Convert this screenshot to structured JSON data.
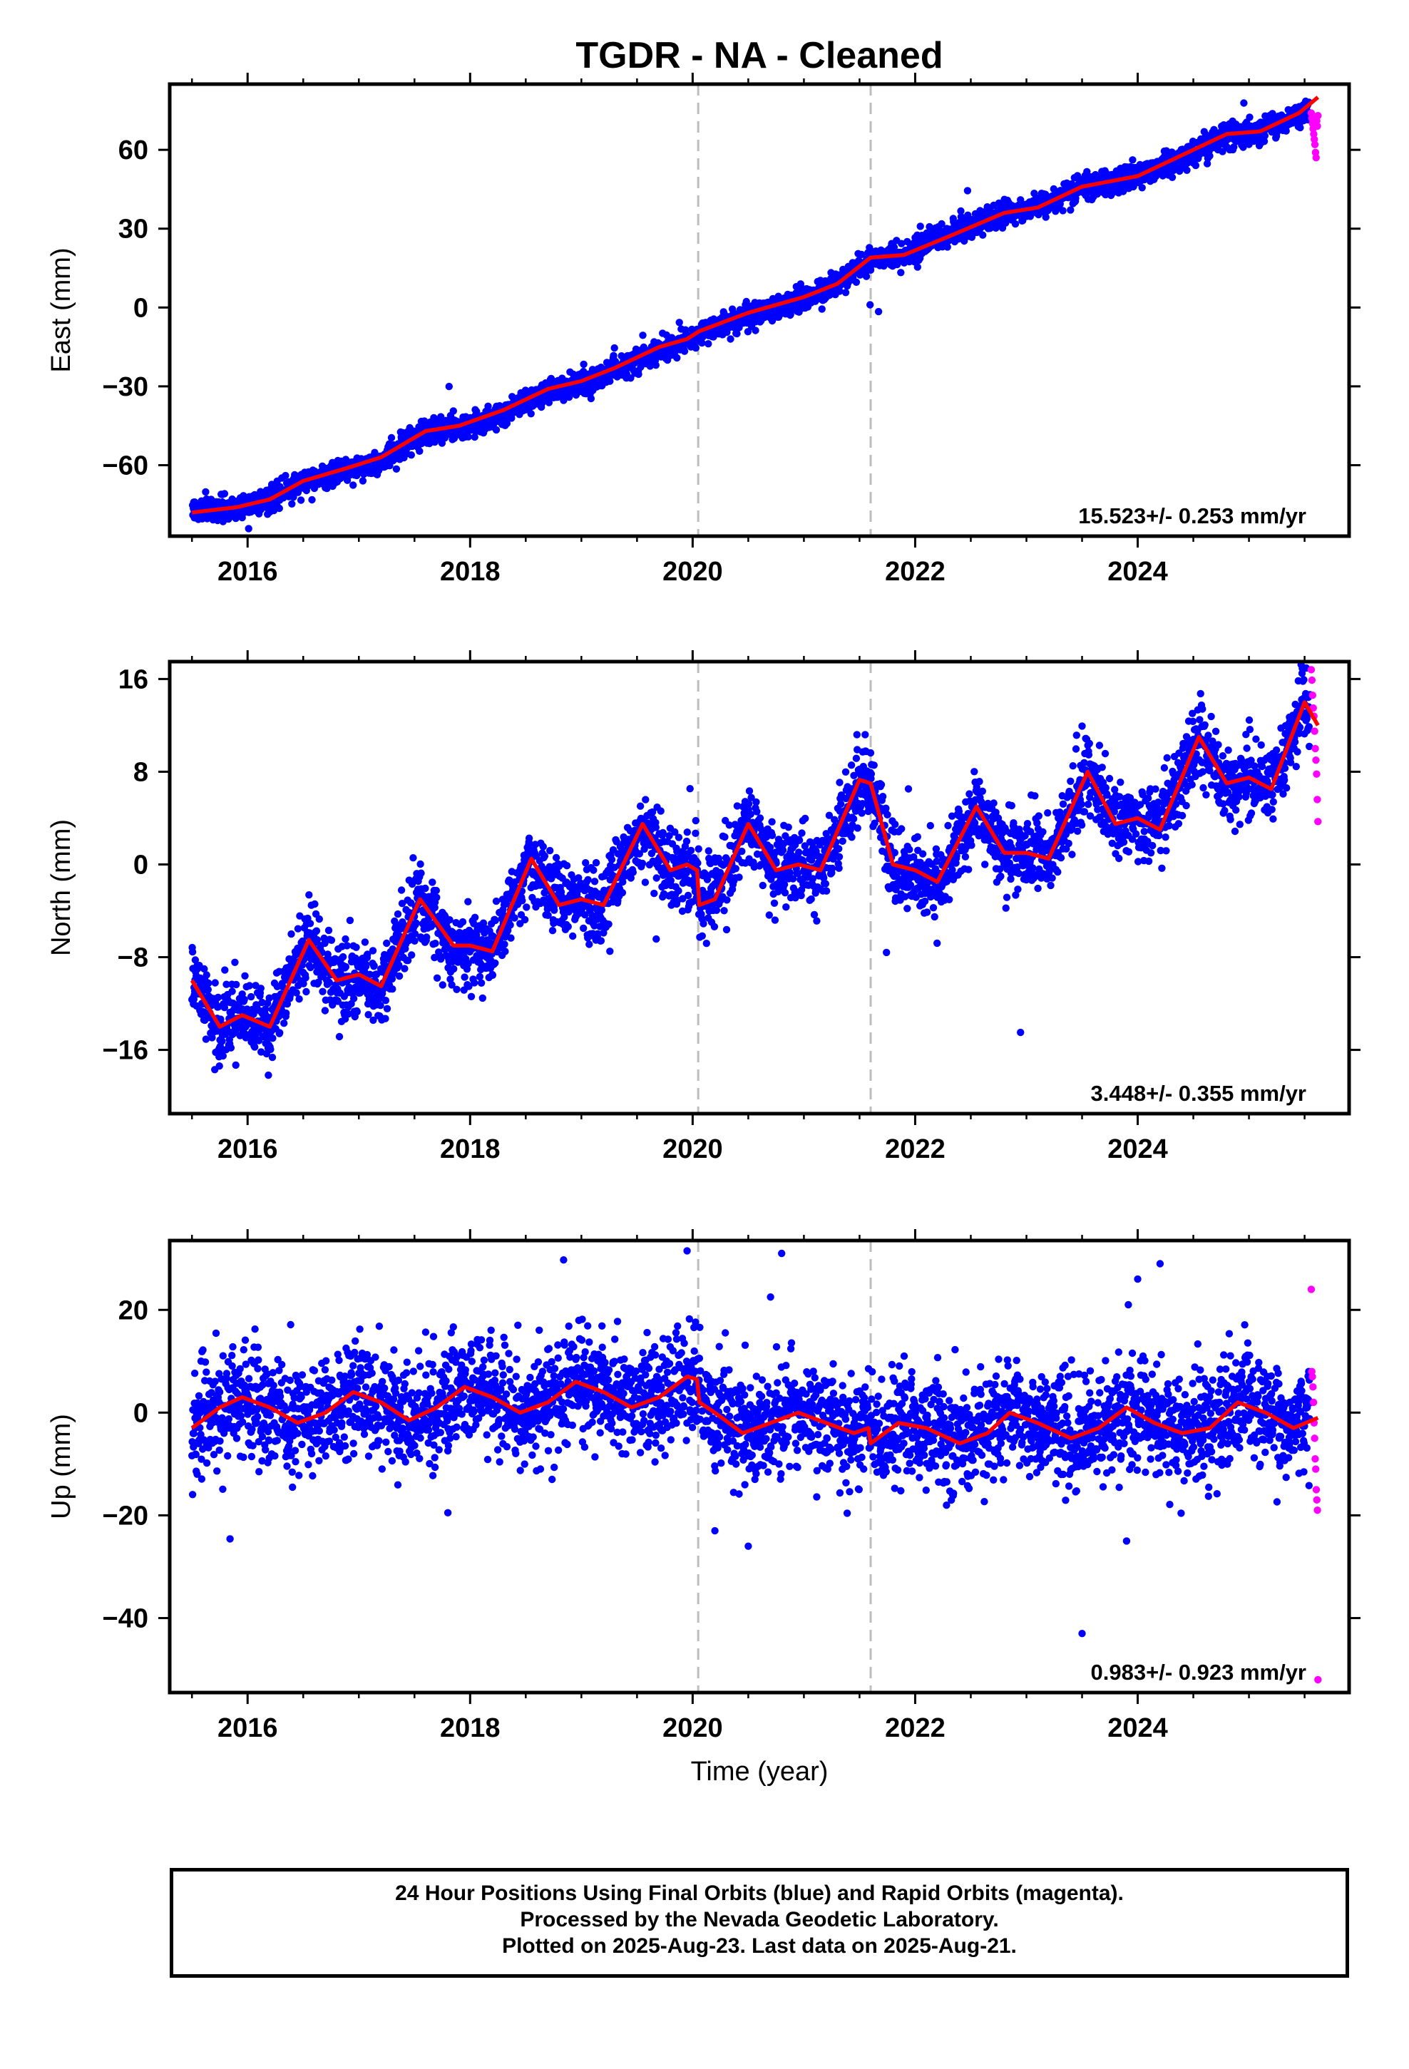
{
  "title": "TGDR  - NA - Cleaned",
  "colors": {
    "final_orbits": "#0000ff",
    "rapid_orbits": "#ff00ff",
    "model_fit": "#ff0000",
    "event_line": "#bdbdbd"
  },
  "chart_data": [
    {
      "type": "scatter",
      "ylabel": "East (mm)",
      "xlabel": "",
      "xlim": [
        2015.3,
        2025.9
      ],
      "ylim": [
        -87,
        85
      ],
      "yticks": [
        -60,
        -30,
        0,
        30,
        60
      ],
      "ytick_labels": [
        "−60",
        "−30",
        "0",
        "30",
        "60"
      ],
      "xticks": [
        2016,
        2018,
        2020,
        2022,
        2024
      ],
      "xtick_labels": [
        "2016",
        "2018",
        "2020",
        "2022",
        "2024"
      ],
      "event_lines": [
        2020.05,
        2021.6
      ],
      "rate_label": "15.523+/- 0.253 mm/yr",
      "series": [
        {
          "kind": "points",
          "color": "final",
          "trend": [
            [
              2015.5,
              -77
            ],
            [
              2015.9,
              -76
            ],
            [
              2016.2,
              -73
            ],
            [
              2016.5,
              -66
            ],
            [
              2016.9,
              -62
            ],
            [
              2017.2,
              -59
            ],
            [
              2017.6,
              -47
            ],
            [
              2017.9,
              -46
            ],
            [
              2018.3,
              -40
            ],
            [
              2018.7,
              -32
            ],
            [
              2019.0,
              -29
            ],
            [
              2019.3,
              -24
            ],
            [
              2019.7,
              -16
            ],
            [
              2019.9,
              -14
            ],
            [
              2020.1,
              -9
            ],
            [
              2020.5,
              -3
            ],
            [
              2021.0,
              3
            ],
            [
              2021.3,
              9
            ],
            [
              2021.6,
              19
            ],
            [
              2021.9,
              20
            ],
            [
              2022.3,
              28
            ],
            [
              2022.8,
              36
            ],
            [
              2023.1,
              38
            ],
            [
              2023.5,
              46
            ],
            [
              2024.0,
              50
            ],
            [
              2024.4,
              57
            ],
            [
              2024.8,
              66
            ],
            [
              2025.1,
              67
            ],
            [
              2025.55,
              75
            ]
          ],
          "noise": 2.2,
          "outlier_rate": 0.004,
          "outlier_scale": 5
        },
        {
          "kind": "rapid",
          "color": "rapid",
          "x_range": [
            2025.56,
            2025.62
          ],
          "values": [
            74,
            72,
            70,
            68,
            66,
            64,
            62,
            59,
            57,
            71,
            69,
            73
          ]
        },
        {
          "kind": "line",
          "color": "fit",
          "points": [
            [
              2015.5,
              -78
            ],
            [
              2015.9,
              -76
            ],
            [
              2016.2,
              -73
            ],
            [
              2016.5,
              -66
            ],
            [
              2016.9,
              -61
            ],
            [
              2017.2,
              -57
            ],
            [
              2017.6,
              -47
            ],
            [
              2017.9,
              -45
            ],
            [
              2018.3,
              -39
            ],
            [
              2018.7,
              -31
            ],
            [
              2019.0,
              -28
            ],
            [
              2019.3,
              -23
            ],
            [
              2019.7,
              -15
            ],
            [
              2019.95,
              -12
            ],
            [
              2020.06,
              -9
            ],
            [
              2020.5,
              -2
            ],
            [
              2021.0,
              4
            ],
            [
              2021.3,
              9
            ],
            [
              2021.6,
              19
            ],
            [
              2021.9,
              20
            ],
            [
              2022.3,
              27
            ],
            [
              2022.8,
              36
            ],
            [
              2023.1,
              38
            ],
            [
              2023.5,
              46
            ],
            [
              2024.0,
              50
            ],
            [
              2024.4,
              58
            ],
            [
              2024.8,
              66
            ],
            [
              2025.1,
              67
            ],
            [
              2025.45,
              74
            ],
            [
              2025.62,
              80
            ]
          ]
        }
      ]
    },
    {
      "type": "scatter",
      "ylabel": "North (mm)",
      "xlabel": "",
      "xlim": [
        2015.3,
        2025.9
      ],
      "ylim": [
        -21.5,
        17.5
      ],
      "yticks": [
        -16,
        -8,
        0,
        8,
        16
      ],
      "ytick_labels": [
        "−16",
        "−8",
        "0",
        "8",
        "16"
      ],
      "xticks": [
        2016,
        2018,
        2020,
        2022,
        2024
      ],
      "xtick_labels": [
        "2016",
        "2018",
        "2020",
        "2022",
        "2024"
      ],
      "event_lines": [
        2020.05,
        2021.6
      ],
      "rate_label": "3.448+/- 0.355 mm/yr",
      "series": [
        {
          "kind": "points",
          "color": "final",
          "follow_fit": true,
          "noise": 1.6,
          "outlier_rate": 0.004,
          "outlier_scale": 4
        },
        {
          "kind": "rapid",
          "color": "rapid",
          "x_range": [
            2025.56,
            2025.62
          ],
          "values": [
            16.8,
            15.9,
            14.6,
            13.5,
            12.8,
            11.5,
            10.0,
            9.0,
            7.8,
            5.6,
            3.7
          ]
        },
        {
          "kind": "line",
          "color": "fit",
          "points": [
            [
              2015.5,
              -10
            ],
            [
              2015.75,
              -14
            ],
            [
              2015.95,
              -13
            ],
            [
              2016.2,
              -14
            ],
            [
              2016.55,
              -6.5
            ],
            [
              2016.8,
              -10
            ],
            [
              2017.0,
              -9.5
            ],
            [
              2017.2,
              -10.5
            ],
            [
              2017.55,
              -3
            ],
            [
              2017.85,
              -7
            ],
            [
              2018.0,
              -7
            ],
            [
              2018.2,
              -7.5
            ],
            [
              2018.55,
              0.5
            ],
            [
              2018.8,
              -3.5
            ],
            [
              2019.0,
              -3
            ],
            [
              2019.2,
              -3.5
            ],
            [
              2019.55,
              3.5
            ],
            [
              2019.8,
              -0.5
            ],
            [
              2019.95,
              0
            ],
            [
              2020.04,
              -0.5
            ],
            [
              2020.06,
              -3.5
            ],
            [
              2020.2,
              -3
            ],
            [
              2020.5,
              3.5
            ],
            [
              2020.75,
              -0.5
            ],
            [
              2020.95,
              0
            ],
            [
              2021.15,
              -0.5
            ],
            [
              2021.5,
              7.3
            ],
            [
              2021.6,
              7
            ],
            [
              2021.8,
              0
            ],
            [
              2022.0,
              -0.5
            ],
            [
              2022.2,
              -1.5
            ],
            [
              2022.55,
              5
            ],
            [
              2022.8,
              1
            ],
            [
              2023.0,
              1
            ],
            [
              2023.2,
              0.5
            ],
            [
              2023.55,
              8
            ],
            [
              2023.8,
              3.5
            ],
            [
              2024.0,
              4
            ],
            [
              2024.2,
              3
            ],
            [
              2024.55,
              11
            ],
            [
              2024.8,
              7
            ],
            [
              2025.0,
              7.5
            ],
            [
              2025.2,
              6.5
            ],
            [
              2025.5,
              14
            ],
            [
              2025.62,
              12
            ]
          ]
        }
      ]
    },
    {
      "type": "scatter",
      "ylabel": "Up (mm)",
      "xlabel": "Time (year)",
      "xlim": [
        2015.3,
        2025.9
      ],
      "ylim": [
        -54.5,
        33.5
      ],
      "yticks": [
        -40,
        -20,
        0,
        20
      ],
      "ytick_labels": [
        "−40",
        "−20",
        "0",
        "20"
      ],
      "xticks": [
        2016,
        2018,
        2020,
        2022,
        2024
      ],
      "xtick_labels": [
        "2016",
        "2018",
        "2020",
        "2022",
        "2024"
      ],
      "event_lines": [
        2020.05,
        2021.6
      ],
      "rate_label": "0.983+/- 0.923 mm/yr",
      "series": [
        {
          "kind": "points",
          "color": "final",
          "follow_fit": true,
          "noise": 5.2,
          "outlier_rate": 0.006,
          "outlier_scale": 3,
          "extra_points": [
            [
              2019.95,
              31.5
            ],
            [
              2020.8,
              31
            ],
            [
              2020.7,
              22.5
            ],
            [
              2023.5,
              -43
            ],
            [
              2020.2,
              -23
            ],
            [
              2020.5,
              -26
            ],
            [
              2023.9,
              -25
            ],
            [
              2024.0,
              26
            ],
            [
              2017.8,
              -19.5
            ]
          ]
        },
        {
          "kind": "rapid",
          "color": "rapid",
          "x_range": [
            2025.56,
            2025.62
          ],
          "values": [
            24,
            8,
            7,
            5,
            2,
            -2,
            -5,
            -9,
            -11,
            -15,
            -17,
            -19,
            -52
          ]
        },
        {
          "kind": "line",
          "color": "fit",
          "points": [
            [
              2015.5,
              -3
            ],
            [
              2015.75,
              1
            ],
            [
              2015.95,
              3
            ],
            [
              2016.2,
              1
            ],
            [
              2016.45,
              -2
            ],
            [
              2016.7,
              0
            ],
            [
              2016.95,
              4
            ],
            [
              2017.2,
              2
            ],
            [
              2017.45,
              -1.5
            ],
            [
              2017.7,
              1
            ],
            [
              2017.95,
              5
            ],
            [
              2018.2,
              3
            ],
            [
              2018.45,
              0
            ],
            [
              2018.7,
              2
            ],
            [
              2018.95,
              6
            ],
            [
              2019.2,
              4
            ],
            [
              2019.45,
              1
            ],
            [
              2019.7,
              3
            ],
            [
              2019.95,
              7
            ],
            [
              2020.04,
              6.5
            ],
            [
              2020.06,
              2
            ],
            [
              2020.2,
              0
            ],
            [
              2020.45,
              -4
            ],
            [
              2020.7,
              -2
            ],
            [
              2020.95,
              0
            ],
            [
              2021.2,
              -2
            ],
            [
              2021.45,
              -4
            ],
            [
              2021.58,
              -3
            ],
            [
              2021.6,
              -6
            ],
            [
              2021.85,
              -2
            ],
            [
              2022.1,
              -3
            ],
            [
              2022.4,
              -6
            ],
            [
              2022.65,
              -4
            ],
            [
              2022.85,
              0
            ],
            [
              2023.1,
              -2
            ],
            [
              2023.4,
              -5
            ],
            [
              2023.65,
              -3
            ],
            [
              2023.9,
              1
            ],
            [
              2024.15,
              -2
            ],
            [
              2024.4,
              -4
            ],
            [
              2024.65,
              -3
            ],
            [
              2024.9,
              2
            ],
            [
              2025.15,
              0
            ],
            [
              2025.4,
              -3
            ],
            [
              2025.62,
              -1
            ]
          ]
        }
      ]
    }
  ],
  "footer": {
    "line1": "24 Hour Positions Using Final Orbits (blue) and Rapid Orbits (magenta).",
    "line2": "Processed by the Nevada Geodetic Laboratory.",
    "line3": "Plotted on 2025-Aug-23. Last data on 2025-Aug-21."
  }
}
